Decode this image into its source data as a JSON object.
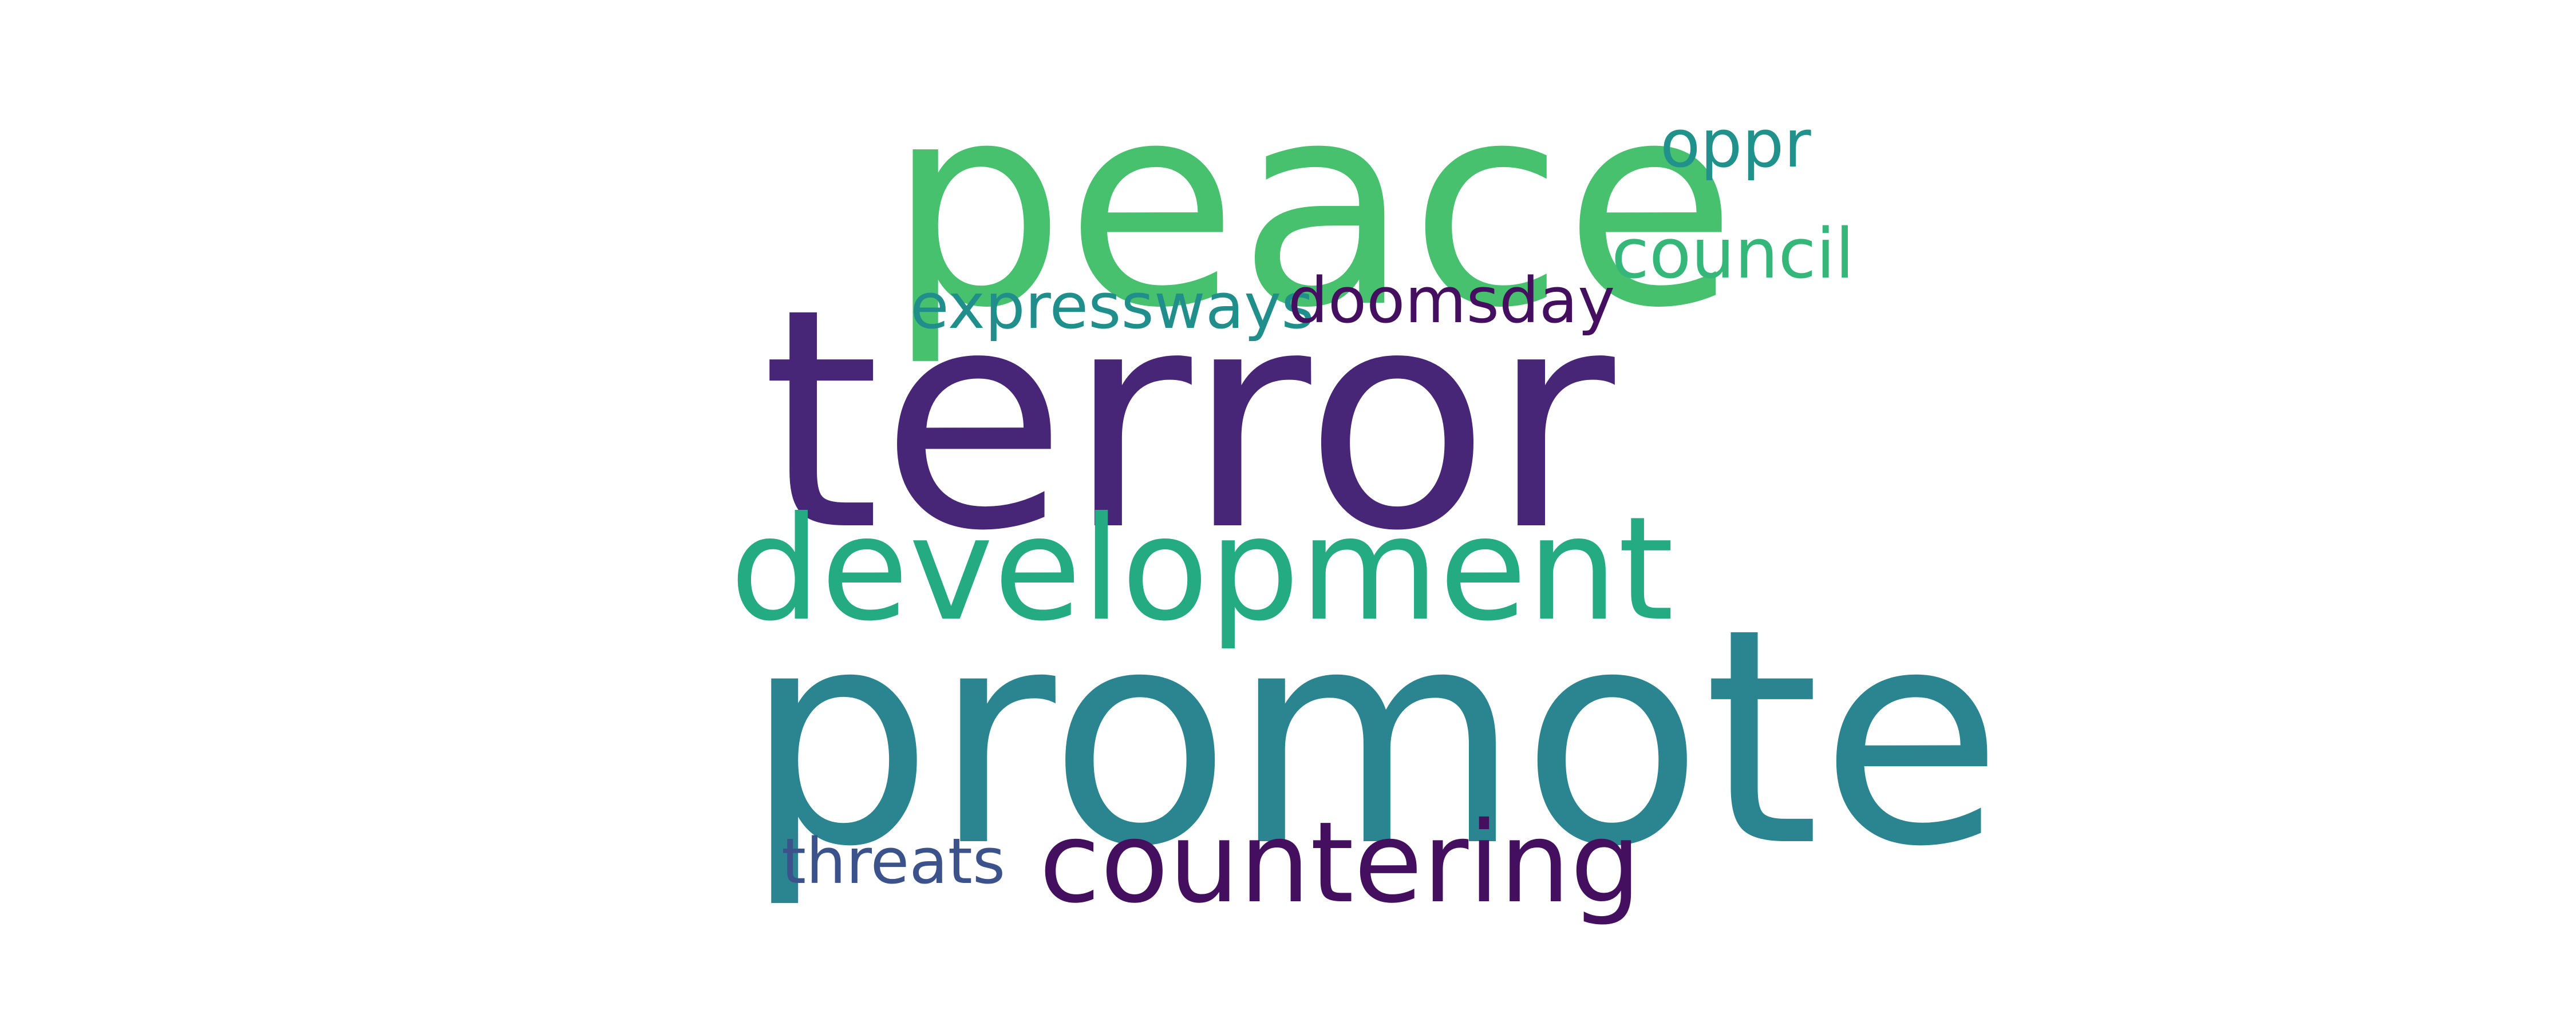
{
  "words": [
    {
      "id": "terror",
      "text": "terror",
      "color": "#482677"
    },
    {
      "id": "promote",
      "text": "promote",
      "color": "#2a8590"
    },
    {
      "id": "peace",
      "text": "peace",
      "color": "#48c16e"
    },
    {
      "id": "development",
      "text": "development",
      "color": "#25ab82"
    },
    {
      "id": "countering",
      "text": "countering",
      "color": "#440f5f"
    },
    {
      "id": "council",
      "text": "council",
      "color": "#35b779"
    },
    {
      "id": "expressways",
      "text": "expressways",
      "color": "#208f8c"
    },
    {
      "id": "doomsday",
      "text": "doomsday",
      "color": "#440f5f"
    },
    {
      "id": "oppr",
      "text": "oppr",
      "color": "#21918c"
    },
    {
      "id": "threats",
      "text": "threats",
      "color": "#3b528b"
    }
  ]
}
